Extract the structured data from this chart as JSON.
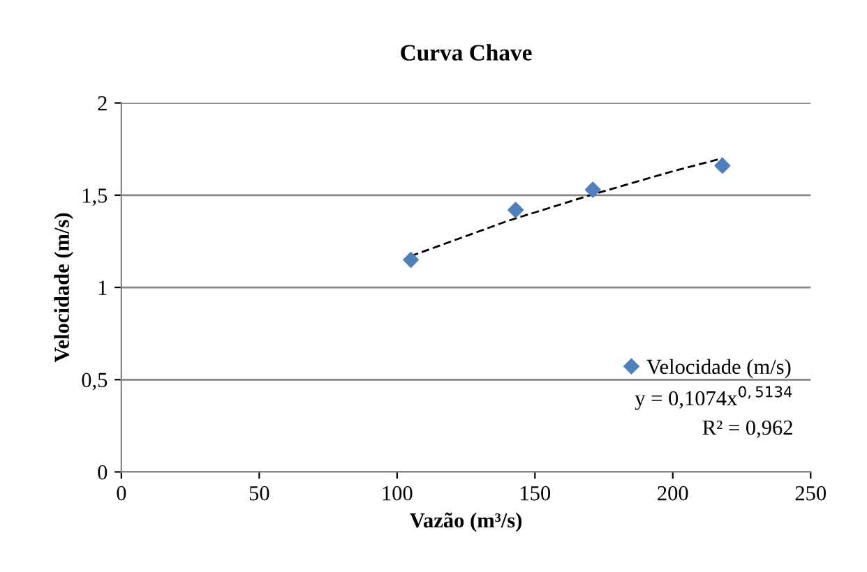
{
  "chart_data": {
    "type": "scatter",
    "title": "Curva Chave",
    "xlabel": "Vazão (m³/s)",
    "ylabel": "Velocidade (m/s)",
    "xlim": [
      0,
      250
    ],
    "xticks": [
      0,
      50,
      100,
      150,
      200,
      250
    ],
    "ylim": [
      0,
      2
    ],
    "yticks": [
      0,
      {
        "value": 0.5,
        "label": "0,5"
      },
      1,
      {
        "value": 1.5,
        "label": "1,5"
      },
      2
    ],
    "grid": "y",
    "legend": "right",
    "marker": "diamond",
    "series": [
      {
        "name": "Velocidade (m/s)",
        "color": "#4f81bd",
        "x": [
          105,
          143,
          171,
          218
        ],
        "values": [
          1.15,
          1.42,
          1.53,
          1.66
        ]
      },
      {
        "type": "line",
        "color": "#000000",
        "line_style": "dashed",
        "marker": "none",
        "x": [
          105,
          140,
          170,
          200,
          218
        ],
        "values": [
          1.17,
          1.36,
          1.5,
          1.63,
          1.7
        ]
      }
    ],
    "annotations": [
      "y = 0,1074x$^{0,5134}$",
      "R² = 0,962"
    ]
  }
}
